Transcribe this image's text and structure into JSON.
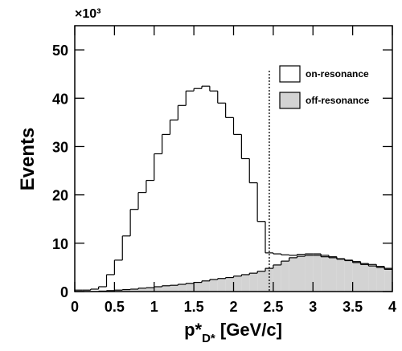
{
  "chart_data": {
    "type": "histogram",
    "bins": [
      0,
      0.1,
      0.2,
      0.3,
      0.4,
      0.5,
      0.6,
      0.7,
      0.8,
      0.9,
      1.0,
      1.1,
      1.2,
      1.3,
      1.4,
      1.5,
      1.6,
      1.7,
      1.8,
      1.9,
      2.0,
      2.1,
      2.2,
      2.3,
      2.4,
      2.5,
      2.6,
      2.7,
      2.8,
      2.9,
      3.0,
      3.1,
      3.2,
      3.3,
      3.4,
      3.5,
      3.6,
      3.7,
      3.8,
      3.9,
      4.0
    ],
    "series": [
      {
        "name": "off-resonance",
        "color": "#d3d3d3",
        "values": [
          0,
          0,
          0,
          0.1,
          0.2,
          0.3,
          0.4,
          0.5,
          0.7,
          0.8,
          1.0,
          1.2,
          1.3,
          1.5,
          1.7,
          1.9,
          2.2,
          2.5,
          2.7,
          2.9,
          3.2,
          3.5,
          3.8,
          4.2,
          4.8,
          5.5,
          6.3,
          7.0,
          7.3,
          7.5,
          7.5,
          7.2,
          7.0,
          6.7,
          6.4,
          6.0,
          5.6,
          5.3,
          5.0,
          4.6
        ]
      },
      {
        "name": "on-resonance",
        "color": "#ffffff",
        "values": [
          0.3,
          0.3,
          0.5,
          1.0,
          3.5,
          6.5,
          11.5,
          17,
          20.5,
          23,
          28.5,
          32.5,
          35.5,
          38.5,
          41.5,
          42,
          42.5,
          41.5,
          39,
          36,
          32.5,
          27.5,
          22.5,
          14.5,
          8,
          7.8,
          7.6,
          7.5,
          7.7,
          7.8,
          7.8,
          7.5,
          7.2,
          6.8,
          6.5,
          6.2,
          5.8,
          5.6,
          5.2,
          4.8
        ]
      }
    ],
    "xlim": [
      0,
      4
    ],
    "ylim": [
      0,
      55
    ],
    "xticks": [
      0,
      0.5,
      1,
      1.5,
      2,
      2.5,
      3,
      3.5,
      4
    ],
    "yticks": [
      0,
      10,
      20,
      30,
      40,
      50
    ],
    "y_multiplier": "×10³",
    "ylabel": "Events",
    "xlabel": {
      "main": "p*",
      "sub": "D*",
      "unit": " [GeV/c]"
    },
    "vline": {
      "x": 2.45,
      "style": "dotted"
    },
    "legend": "upper right"
  }
}
